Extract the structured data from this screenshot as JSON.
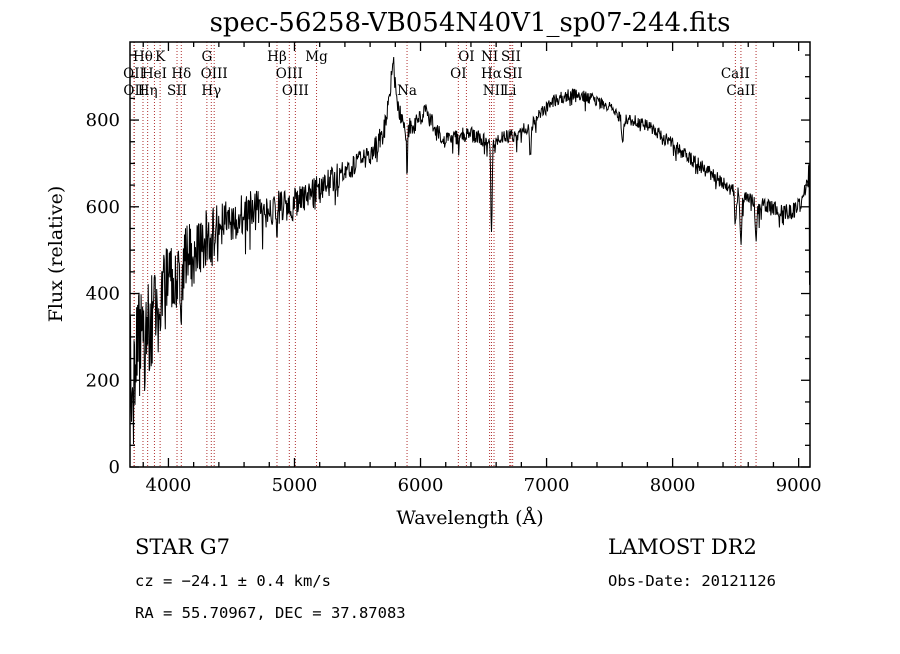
{
  "title": "spec-56258-VB054N40V1_sp07-244.fits",
  "footer": {
    "class_label": "STAR    G7",
    "survey": "LAMOST DR2",
    "cz": "cz = −24.1 ± 0.4 km/s",
    "obs_date": "Obs-Date: 20121126",
    "radec": "RA =  55.70967, DEC =  37.87083"
  },
  "colors": {
    "background": "#ffffff",
    "spectrum": "#000000",
    "axis": "#000000",
    "spectral_line_marker": "#b03030",
    "spectral_line_label": "#8b2020"
  },
  "chart_data": {
    "type": "line",
    "title": "spec-56258-VB054N40V1_sp07-244.fits",
    "xlabel": "Wavelength (Å)",
    "ylabel": "Flux (relative)",
    "xlim": [
      3695,
      9090
    ],
    "ylim": [
      0,
      980
    ],
    "xticks": [
      4000,
      5000,
      6000,
      7000,
      8000,
      9000
    ],
    "yticks": [
      0,
      200,
      400,
      600,
      800
    ],
    "x_minor_step": 200,
    "y_minor_step": 50,
    "grid": false,
    "legend": "none",
    "series_name": "observed spectrum flux (relative) vs wavelength (Å)",
    "continuum": [
      [
        3695,
        220
      ],
      [
        3720,
        240
      ],
      [
        3760,
        265
      ],
      [
        3800,
        295
      ],
      [
        3850,
        325
      ],
      [
        3900,
        355
      ],
      [
        3950,
        385
      ],
      [
        4000,
        420
      ],
      [
        4100,
        465
      ],
      [
        4200,
        495
      ],
      [
        4300,
        530
      ],
      [
        4400,
        555
      ],
      [
        4500,
        572
      ],
      [
        4600,
        585
      ],
      [
        4700,
        592
      ],
      [
        4800,
        596
      ],
      [
        4900,
        600
      ],
      [
        5000,
        606
      ],
      [
        5100,
        620
      ],
      [
        5200,
        642
      ],
      [
        5300,
        662
      ],
      [
        5400,
        682
      ],
      [
        5500,
        702
      ],
      [
        5600,
        722
      ],
      [
        5650,
        740
      ],
      [
        5700,
        768
      ],
      [
        5740,
        805
      ],
      [
        5770,
        865
      ],
      [
        5790,
        880
      ],
      [
        5815,
        848
      ],
      [
        5845,
        810
      ],
      [
        5875,
        790
      ],
      [
        5905,
        780
      ],
      [
        5950,
        790
      ],
      [
        6000,
        806
      ],
      [
        6040,
        816
      ],
      [
        6080,
        800
      ],
      [
        6120,
        776
      ],
      [
        6170,
        758
      ],
      [
        6220,
        754
      ],
      [
        6280,
        760
      ],
      [
        6350,
        765
      ],
      [
        6420,
        765
      ],
      [
        6500,
        755
      ],
      [
        6560,
        750
      ],
      [
        6620,
        754
      ],
      [
        6700,
        762
      ],
      [
        6780,
        770
      ],
      [
        6860,
        784
      ],
      [
        6940,
        808
      ],
      [
        7000,
        830
      ],
      [
        7060,
        844
      ],
      [
        7120,
        852
      ],
      [
        7200,
        860
      ],
      [
        7280,
        856
      ],
      [
        7360,
        848
      ],
      [
        7440,
        838
      ],
      [
        7520,
        826
      ],
      [
        7580,
        806
      ],
      [
        7650,
        800
      ],
      [
        7720,
        797
      ],
      [
        7800,
        788
      ],
      [
        7880,
        772
      ],
      [
        7960,
        754
      ],
      [
        8040,
        734
      ],
      [
        8120,
        716
      ],
      [
        8200,
        698
      ],
      [
        8280,
        682
      ],
      [
        8360,
        664
      ],
      [
        8440,
        648
      ],
      [
        8520,
        630
      ],
      [
        8600,
        616
      ],
      [
        8680,
        604
      ],
      [
        8760,
        597
      ],
      [
        8840,
        592
      ],
      [
        8920,
        588
      ],
      [
        8980,
        594
      ],
      [
        9020,
        610
      ],
      [
        9055,
        640
      ],
      [
        9085,
        690
      ]
    ],
    "noise": [
      [
        3695,
        150
      ],
      [
        3800,
        132
      ],
      [
        3900,
        116
      ],
      [
        4000,
        100
      ],
      [
        4150,
        82
      ],
      [
        4300,
        66
      ],
      [
        4500,
        52
      ],
      [
        4700,
        46
      ],
      [
        5000,
        38
      ],
      [
        5300,
        32
      ],
      [
        5600,
        27
      ],
      [
        5900,
        23
      ],
      [
        6200,
        20
      ],
      [
        6500,
        18
      ],
      [
        6800,
        16
      ],
      [
        7200,
        14
      ],
      [
        7600,
        13
      ],
      [
        8000,
        15
      ],
      [
        8400,
        17
      ],
      [
        8700,
        20
      ],
      [
        9000,
        19
      ],
      [
        9085,
        15
      ]
    ],
    "dips": [
      {
        "wl": 6563,
        "depth": 210,
        "width": 5
      },
      {
        "wl": 5893,
        "depth": 100,
        "width": 5
      },
      {
        "wl": 8498,
        "depth": 85,
        "width": 6
      },
      {
        "wl": 8542,
        "depth": 105,
        "width": 6
      },
      {
        "wl": 8662,
        "depth": 95,
        "width": 6
      },
      {
        "wl": 6872,
        "depth": 70,
        "width": 6
      },
      {
        "wl": 7605,
        "depth": 50,
        "width": 8
      },
      {
        "wl": 4101,
        "depth": 60,
        "width": 5
      },
      {
        "wl": 4340,
        "depth": 50,
        "width": 5
      },
      {
        "wl": 4861,
        "depth": 60,
        "width": 5
      }
    ],
    "spikes": [
      {
        "wl": 5780,
        "amp": 75,
        "width": 10
      },
      {
        "wl": 5745,
        "amp": 25,
        "width": 6
      }
    ],
    "spectral_lines": [
      {
        "label": "OII",
        "wl": 3727,
        "row": 2
      },
      {
        "label": "OII",
        "wl": 3729,
        "row": 3
      },
      {
        "label": "Hθ",
        "wl": 3798,
        "row": 1
      },
      {
        "label": "Hη",
        "wl": 3835,
        "row": 3
      },
      {
        "label": "HeI",
        "wl": 3889,
        "row": 2
      },
      {
        "label": "K",
        "wl": 3934,
        "row": 1
      },
      {
        "label": "SII",
        "wl": 4068,
        "row": 3
      },
      {
        "label": "Hδ",
        "wl": 4102,
        "row": 2
      },
      {
        "label": "G",
        "wl": 4305,
        "row": 1
      },
      {
        "label": "Hγ",
        "wl": 4340,
        "row": 3
      },
      {
        "label": "OIII",
        "wl": 4363,
        "row": 2
      },
      {
        "label": "Hβ",
        "wl": 4861,
        "row": 1
      },
      {
        "label": "OIII",
        "wl": 4959,
        "row": 2
      },
      {
        "label": "OIII",
        "wl": 5007,
        "row": 3
      },
      {
        "label": "Mg",
        "wl": 5175,
        "row": 1
      },
      {
        "label": "Na",
        "wl": 5893,
        "row": 3
      },
      {
        "label": "OI",
        "wl": 6300,
        "row": 2
      },
      {
        "label": "OI",
        "wl": 6364,
        "row": 1
      },
      {
        "label": "NI",
        "wl": 6548,
        "row": 1
      },
      {
        "label": "Hα",
        "wl": 6563,
        "row": 2
      },
      {
        "label": "NII",
        "wl": 6583,
        "row": 3
      },
      {
        "label": "Li",
        "wl": 6708,
        "row": 3
      },
      {
        "label": "SII",
        "wl": 6717,
        "row": 1
      },
      {
        "label": "SII",
        "wl": 6731,
        "row": 2
      },
      {
        "label": "CaII",
        "wl": 8498,
        "row": 2
      },
      {
        "label": "CaII",
        "wl": 8542,
        "row": 3
      },
      {
        "label": "CaII",
        "wl": 8662,
        "row": 0
      }
    ]
  }
}
